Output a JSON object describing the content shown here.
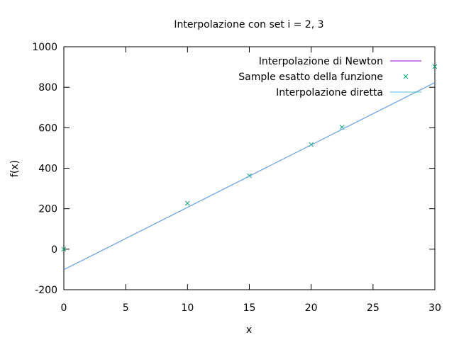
{
  "chart_data": {
    "type": "line",
    "title": "Interpolazione con set i = 2, 3",
    "xlabel": "x",
    "ylabel": "f(x)",
    "xlim": [
      0,
      30
    ],
    "ylim": [
      -200,
      1000
    ],
    "xticks": [
      0,
      5,
      10,
      15,
      20,
      25,
      30
    ],
    "yticks": [
      -200,
      0,
      200,
      400,
      600,
      800,
      1000
    ],
    "grid": false,
    "legend_position": "top-right",
    "series": [
      {
        "name": "Interpolazione di Newton",
        "kind": "line",
        "color": "#9400d3",
        "x": [
          0,
          30
        ],
        "y": [
          -101,
          823
        ]
      },
      {
        "name": "Sample esatto della funzione",
        "kind": "points",
        "marker": "x",
        "color": "#009e73",
        "x": [
          0,
          10,
          15,
          20,
          22.5,
          30
        ],
        "y": [
          0,
          227,
          363,
          517,
          603,
          902
        ]
      },
      {
        "name": "Interpolazione diretta",
        "kind": "line",
        "color": "#56b4e9",
        "x": [
          0,
          30
        ],
        "y": [
          -101,
          823
        ]
      }
    ]
  }
}
